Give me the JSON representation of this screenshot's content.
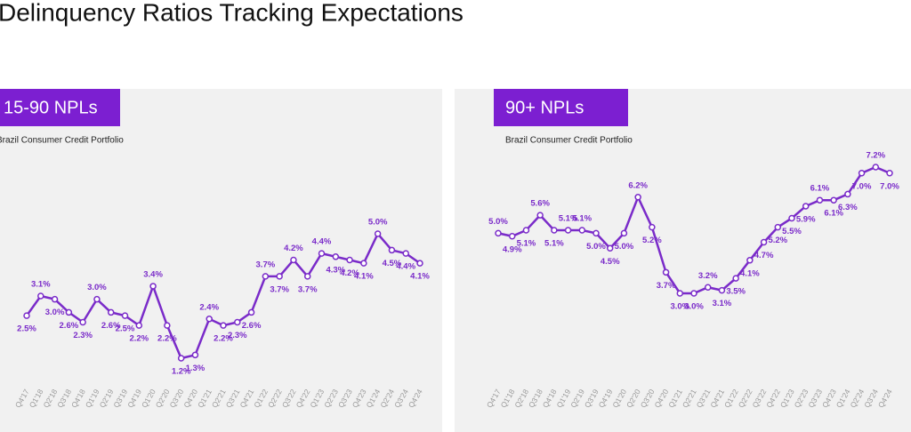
{
  "header": {
    "title": "Delinquency Ratios Tracking Expectations"
  },
  "chart_data": [
    {
      "type": "line",
      "title": "15-90 NPLs",
      "subtitle": "Brazil Consumer Credit Portfolio",
      "color": "#7a2bc9",
      "categories": [
        "Q4'17",
        "Q1'18",
        "Q2'18",
        "Q3'18",
        "Q4'18",
        "Q1'19",
        "Q2'19",
        "Q3'19",
        "Q4'19",
        "Q1'20",
        "Q2'20",
        "Q3'20",
        "Q4'20",
        "Q1'21",
        "Q2'21",
        "Q3'21",
        "Q4'21",
        "Q1'22",
        "Q2'22",
        "Q3'22",
        "Q4'22",
        "Q1'23",
        "Q2'23",
        "Q3'23",
        "Q4'23",
        "Q1'24",
        "Q2'24",
        "Q3'24",
        "Q4'24"
      ],
      "values": [
        2.5,
        3.1,
        3.0,
        2.6,
        2.3,
        3.0,
        2.6,
        2.5,
        2.2,
        3.4,
        2.2,
        1.2,
        1.3,
        2.4,
        2.2,
        2.3,
        2.6,
        3.7,
        3.7,
        4.2,
        3.7,
        4.4,
        4.3,
        4.2,
        4.1,
        5.0,
        4.5,
        4.4,
        4.1
      ],
      "value_labels": [
        "2.5%",
        "3.1%",
        "3.0%",
        "2.6%",
        "2.3%",
        "3.0%",
        "2.6%",
        "2.5%",
        "2.2%",
        "3.4%",
        "2.2%",
        "1.2%",
        "1.3%",
        "2.4%",
        "2.2%",
        "2.3%",
        "2.6%",
        "3.7%",
        "3.7%",
        "4.2%",
        "3.7%",
        "4.4%",
        "4.3%",
        "4.2%",
        "4.1%",
        "5.0%",
        "4.5%",
        "4.4%",
        "4.1%"
      ]
    },
    {
      "type": "line",
      "title": "90+ NPLs",
      "subtitle": "Brazil Consumer Credit Portfolio",
      "color": "#7a2bc9",
      "categories": [
        "Q4'17",
        "Q1'18",
        "Q2'18",
        "Q3'18",
        "Q4'18",
        "Q1'19",
        "Q2'19",
        "Q3'19",
        "Q4'19",
        "Q1'20",
        "Q2'20",
        "Q3'20",
        "Q4'20",
        "Q1'21",
        "Q2'21",
        "Q3'21",
        "Q4'21",
        "Q1'22",
        "Q2'22",
        "Q3'22",
        "Q4'22",
        "Q1'23",
        "Q2'23",
        "Q3'23",
        "Q4'23",
        "Q1'24",
        "Q2'24",
        "Q3'24",
        "Q4'24"
      ],
      "values": [
        5.0,
        4.9,
        5.1,
        5.6,
        5.1,
        5.1,
        5.1,
        5.0,
        4.5,
        5.0,
        6.2,
        5.2,
        3.7,
        3.0,
        3.0,
        3.2,
        3.1,
        3.5,
        4.1,
        4.7,
        5.2,
        5.5,
        5.9,
        6.1,
        6.1,
        6.3,
        7.0,
        7.2,
        7.0
      ],
      "value_labels": [
        "5.0%",
        "4.9%",
        "5.1%",
        "5.6%",
        "5.1%",
        "5.1%",
        "5.1%",
        "5.0%",
        "4.5%",
        "5.0%",
        "6.2%",
        "5.2%",
        "3.7%",
        "3.0%",
        "3.0%",
        "3.2%",
        "3.1%",
        "3.5%",
        "4.1%",
        "4.7%",
        "5.2%",
        "5.5%",
        "5.9%",
        "6.1%",
        "6.1%",
        "6.3%",
        "7.0%",
        "7.2%",
        "7.0%"
      ]
    }
  ]
}
